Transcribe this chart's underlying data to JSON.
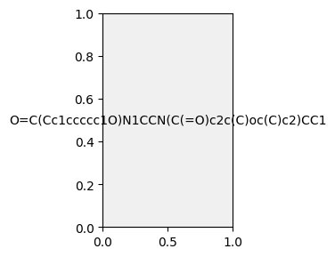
{
  "smiles": "O=C(Cc1ccccc1O)N1CCN(C(=O)c2c(C)oc(C)c2)CC1",
  "image_size": 300,
  "background_color": "#f0f0f0",
  "atom_colors": {
    "O": "#ff0000",
    "N": "#0000ff",
    "H": "#008080"
  }
}
